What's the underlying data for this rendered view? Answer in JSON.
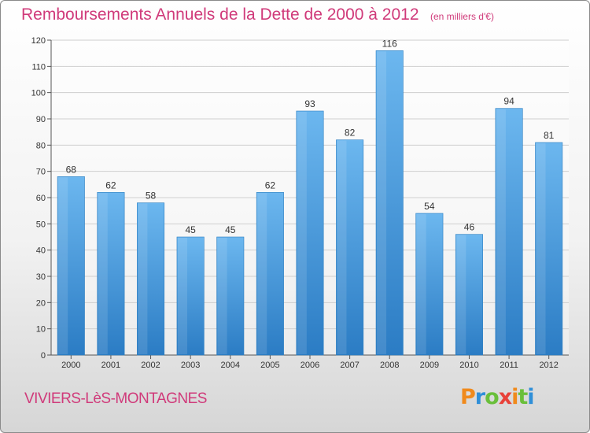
{
  "chart_data": {
    "type": "bar",
    "title": "Remboursements Annuels de la Dette de 2000 à 2012",
    "unit": "(en milliers d'€)",
    "categories": [
      "2000",
      "2001",
      "2002",
      "2003",
      "2004",
      "2005",
      "2006",
      "2007",
      "2008",
      "2009",
      "2010",
      "2011",
      "2012"
    ],
    "values": [
      68,
      62,
      58,
      45,
      45,
      62,
      93,
      82,
      116,
      54,
      46,
      94,
      81
    ],
    "ylim": [
      0,
      120
    ],
    "yticks": [
      0,
      10,
      20,
      30,
      40,
      50,
      60,
      70,
      80,
      90,
      100,
      110,
      120
    ],
    "grid": true,
    "bar_color": "#4a9fe0",
    "bar_color_light": "#6cb7ef",
    "bar_color_dark": "#2b7cc4"
  },
  "footer": {
    "commune": "VIVIERS-LèS-MONTAGNES"
  },
  "logo": {
    "text": "Proxiti"
  }
}
